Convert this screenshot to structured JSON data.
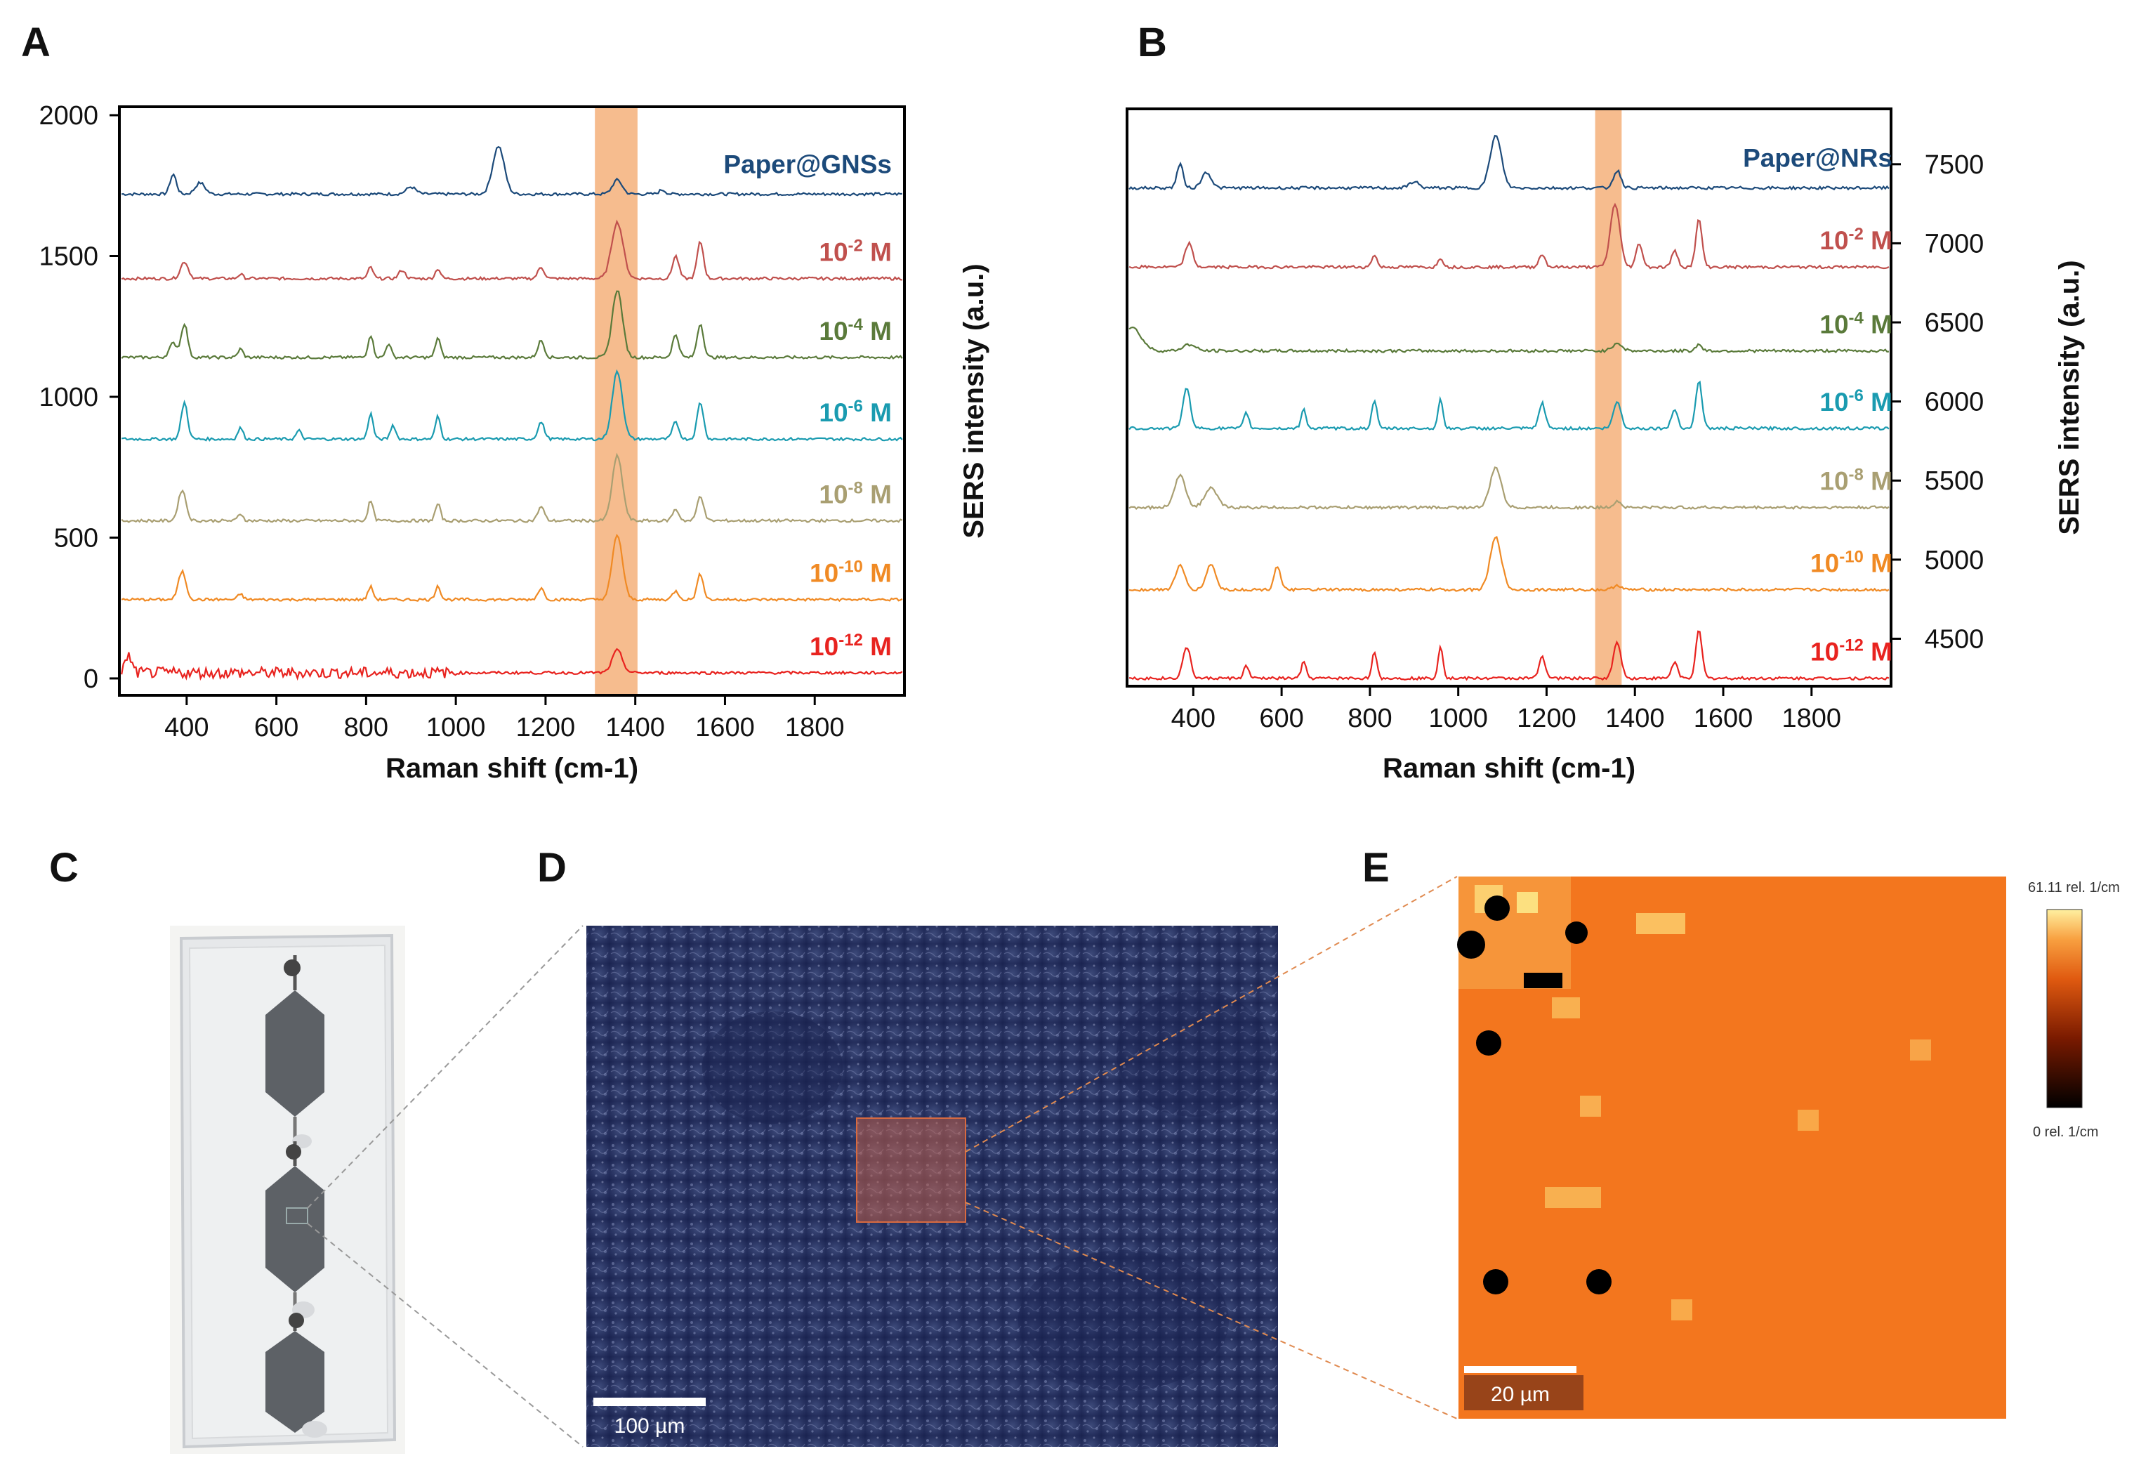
{
  "panels": {
    "a": "A",
    "b": "B",
    "c": "C",
    "d": "D",
    "e": "E"
  },
  "colors": {
    "paper": "#1c4a7a",
    "m2": "#c0504d",
    "m4": "#5a7a3a",
    "m6": "#1a9bb0",
    "m8": "#a99f72",
    "m10": "#f08a24",
    "m12": "#e8231f",
    "highlight": "#f5b07a"
  },
  "chart_data": [
    {
      "id": "A",
      "type": "line",
      "title": "",
      "xlabel": "Raman shift (cm-1)",
      "ylabel": "SERS intensity (a.u.)",
      "xlim": [
        250,
        2000
      ],
      "ylim": [
        -60,
        2030
      ],
      "xticks": [
        400,
        600,
        800,
        1000,
        1200,
        1400,
        1600,
        1800
      ],
      "yticks": [
        0,
        500,
        1000,
        1500,
        2000
      ],
      "highlight_band": [
        1310,
        1405
      ],
      "peak_positions_cm-1": [
        395,
        520,
        810,
        960,
        1190,
        1360,
        1490,
        1545
      ],
      "series": [
        {
          "name": "Paper@GNSs",
          "label_main": "Paper@GNSs",
          "label_exp": "",
          "label_unit": "",
          "baseline": 1720,
          "color_key": "paper",
          "peaks": [
            [
              370,
              70,
              10
            ],
            [
              430,
              40,
              15
            ],
            [
              900,
              25,
              15
            ],
            [
              1095,
              170,
              18
            ],
            [
              1360,
              50,
              15
            ],
            [
              1460,
              15,
              10
            ]
          ]
        },
        {
          "name": "10-2 M",
          "label_main": "10",
          "label_exp": "-2",
          "label_unit": " M",
          "baseline": 1420,
          "color_key": "m2",
          "peaks": [
            [
              395,
              60,
              12
            ],
            [
              520,
              15,
              8
            ],
            [
              810,
              40,
              8
            ],
            [
              880,
              30,
              10
            ],
            [
              960,
              35,
              8
            ],
            [
              1190,
              40,
              10
            ],
            [
              1360,
              200,
              18
            ],
            [
              1490,
              80,
              10
            ],
            [
              1545,
              130,
              10
            ]
          ]
        },
        {
          "name": "10-4 M",
          "label_main": "10",
          "label_exp": "-4",
          "label_unit": " M",
          "baseline": 1140,
          "color_key": "m4",
          "peaks": [
            [
              370,
              50,
              12
            ],
            [
              395,
              120,
              10
            ],
            [
              520,
              30,
              8
            ],
            [
              810,
              80,
              8
            ],
            [
              850,
              50,
              8
            ],
            [
              960,
              70,
              8
            ],
            [
              1190,
              60,
              10
            ],
            [
              1360,
              240,
              16
            ],
            [
              1490,
              80,
              10
            ],
            [
              1545,
              120,
              10
            ]
          ]
        },
        {
          "name": "10-6 M",
          "label_main": "10",
          "label_exp": "-6",
          "label_unit": " M",
          "baseline": 850,
          "color_key": "m6",
          "peaks": [
            [
              395,
              130,
              10
            ],
            [
              520,
              40,
              8
            ],
            [
              650,
              30,
              8
            ],
            [
              810,
              90,
              8
            ],
            [
              860,
              50,
              8
            ],
            [
              960,
              80,
              8
            ],
            [
              1190,
              60,
              10
            ],
            [
              1360,
              240,
              16
            ],
            [
              1490,
              60,
              10
            ],
            [
              1545,
              130,
              10
            ]
          ]
        },
        {
          "name": "10-8 M",
          "label_main": "10",
          "label_exp": "-8",
          "label_unit": " M",
          "baseline": 560,
          "color_key": "m8",
          "peaks": [
            [
              390,
              110,
              12
            ],
            [
              520,
              25,
              8
            ],
            [
              810,
              70,
              8
            ],
            [
              960,
              60,
              8
            ],
            [
              1190,
              50,
              10
            ],
            [
              1360,
              230,
              16
            ],
            [
              1490,
              40,
              10
            ],
            [
              1545,
              90,
              10
            ]
          ]
        },
        {
          "name": "10-10 M",
          "label_main": "10",
          "label_exp": "-10",
          "label_unit": " M",
          "baseline": 280,
          "color_key": "m10",
          "peaks": [
            [
              390,
              100,
              12
            ],
            [
              520,
              20,
              8
            ],
            [
              810,
              45,
              8
            ],
            [
              960,
              50,
              8
            ],
            [
              1190,
              40,
              10
            ],
            [
              1360,
              230,
              16
            ],
            [
              1490,
              30,
              10
            ],
            [
              1545,
              90,
              10
            ]
          ]
        },
        {
          "name": "10-12 M",
          "label_main": "10",
          "label_exp": "-12",
          "label_unit": " M",
          "baseline": 20,
          "color_key": "m12",
          "peaks": [
            [
              270,
              60,
              10
            ],
            [
              1360,
              80,
              16
            ]
          ]
        }
      ]
    },
    {
      "id": "B",
      "type": "line",
      "title": "",
      "xlabel": "Raman shift (cm-1)",
      "ylabel": "SERS intensity (a.u.)",
      "xlim": [
        250,
        1980
      ],
      "ylim": [
        4200,
        7850
      ],
      "xticks": [
        400,
        600,
        800,
        1000,
        1200,
        1400,
        1600,
        1800
      ],
      "yticks": [
        4500,
        5000,
        5500,
        6000,
        6500,
        7000,
        7500
      ],
      "highlight_band": [
        1310,
        1370
      ],
      "series": [
        {
          "name": "Paper@NRs",
          "label_main": "Paper@NRs",
          "label_exp": "",
          "label_unit": "",
          "baseline": 7350,
          "color_key": "paper",
          "peaks": [
            [
              370,
              150,
              10
            ],
            [
              430,
              100,
              15
            ],
            [
              900,
              40,
              15
            ],
            [
              1085,
              330,
              18
            ],
            [
              1360,
              110,
              12
            ]
          ]
        },
        {
          "name": "10-2 M",
          "label_main": "10",
          "label_exp": "-2",
          "label_unit": " M",
          "baseline": 6850,
          "color_key": "m2",
          "peaks": [
            [
              390,
              150,
              12
            ],
            [
              810,
              80,
              8
            ],
            [
              960,
              60,
              8
            ],
            [
              1190,
              80,
              10
            ],
            [
              1355,
              400,
              15
            ],
            [
              1410,
              150,
              10
            ],
            [
              1490,
              100,
              10
            ],
            [
              1545,
              300,
              10
            ]
          ]
        },
        {
          "name": "10-4 M",
          "label_main": "10",
          "label_exp": "-4",
          "label_unit": " M",
          "baseline": 6320,
          "color_key": "m4",
          "peaks": [
            [
              260,
              150,
              30
            ],
            [
              390,
              40,
              20
            ],
            [
              1360,
              50,
              15
            ],
            [
              1545,
              40,
              10
            ]
          ]
        },
        {
          "name": "10-6 M",
          "label_main": "10",
          "label_exp": "-6",
          "label_unit": " M",
          "baseline": 5830,
          "color_key": "m6",
          "peaks": [
            [
              385,
              250,
              12
            ],
            [
              520,
              100,
              8
            ],
            [
              650,
              120,
              8
            ],
            [
              810,
              180,
              8
            ],
            [
              960,
              180,
              8
            ],
            [
              1190,
              160,
              10
            ],
            [
              1360,
              170,
              12
            ],
            [
              1490,
              120,
              10
            ],
            [
              1545,
              300,
              10
            ]
          ]
        },
        {
          "name": "10-8 M",
          "label_main": "10",
          "label_exp": "-8",
          "label_unit": " M",
          "baseline": 5330,
          "color_key": "m8",
          "peaks": [
            [
              370,
              200,
              18
            ],
            [
              440,
              120,
              20
            ],
            [
              1085,
              250,
              18
            ],
            [
              1360,
              40,
              12
            ]
          ]
        },
        {
          "name": "10-10 M",
          "label_main": "10",
          "label_exp": "-10",
          "label_unit": " M",
          "baseline": 4810,
          "color_key": "m10",
          "peaks": [
            [
              370,
              150,
              15
            ],
            [
              440,
              160,
              15
            ],
            [
              590,
              150,
              10
            ],
            [
              1085,
              330,
              18
            ],
            [
              1360,
              30,
              12
            ]
          ]
        },
        {
          "name": "10-12 M",
          "label_main": "10",
          "label_exp": "-12",
          "label_unit": " M",
          "baseline": 4250,
          "color_key": "m12",
          "peaks": [
            [
              385,
              200,
              12
            ],
            [
              520,
              80,
              8
            ],
            [
              650,
              100,
              8
            ],
            [
              810,
              160,
              8
            ],
            [
              960,
              200,
              8
            ],
            [
              1190,
              140,
              10
            ],
            [
              1360,
              230,
              12
            ],
            [
              1490,
              100,
              10
            ],
            [
              1545,
              300,
              10
            ]
          ]
        }
      ]
    }
  ],
  "photo_d": {
    "scale_label": "100 µm"
  },
  "map_e": {
    "scale_label": "20 µm",
    "colorbar_max": "61.11 rel. 1/cm",
    "colorbar_min": "0 rel. 1/cm"
  }
}
